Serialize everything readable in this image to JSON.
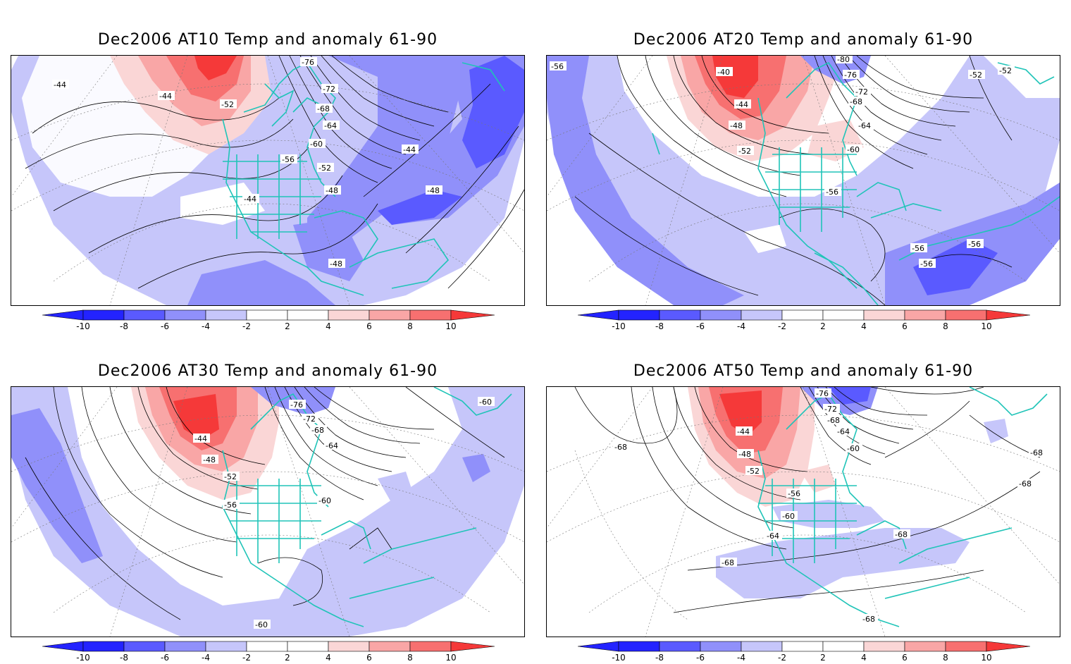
{
  "colors": {
    "n10": "#2323ff",
    "n8": "#5a5aff",
    "n6": "#9090fa",
    "n4": "#c6c6fa",
    "p4": "#fad6d6",
    "p6": "#f9a6a6",
    "p8": "#f77070",
    "p10": "#f53939",
    "coast": "#20c4b8"
  },
  "colorbar": {
    "ticks": [
      "-10",
      "-8",
      "-6",
      "-4",
      "-2",
      "2",
      "4",
      "6",
      "8",
      "10"
    ]
  },
  "panels": [
    {
      "title": "Dec2006 AT10 Temp and anomaly 61-90",
      "contour_labels": [
        "-44",
        "-44",
        "-52",
        "-76",
        "-72",
        "-68",
        "-64",
        "-60",
        "-56",
        "-52",
        "-48",
        "-44",
        "-44",
        "-48",
        "-48"
      ]
    },
    {
      "title": "Dec2006 AT20 Temp and anomaly 61-90",
      "contour_labels": [
        "-56",
        "-40",
        "-44",
        "-48",
        "-52",
        "-80",
        "-76",
        "-72",
        "-68",
        "-64",
        "-60",
        "-56",
        "-52",
        "-52",
        "-56",
        "-56",
        "-56"
      ]
    },
    {
      "title": "Dec2006 AT30 Temp and anomaly 61-90",
      "contour_labels": [
        "-44",
        "-48",
        "-52",
        "-56",
        "-76",
        "-72",
        "-68",
        "-64",
        "-60",
        "-60",
        "-60"
      ]
    },
    {
      "title": "Dec2006 AT50 Temp and anomaly 61-90",
      "contour_labels": [
        "-68",
        "-44",
        "-48",
        "-52",
        "-56",
        "-60",
        "-64",
        "-76",
        "-72",
        "-68",
        "-64",
        "-60",
        "-68",
        "-68",
        "-68",
        "-68",
        "-68"
      ]
    }
  ]
}
